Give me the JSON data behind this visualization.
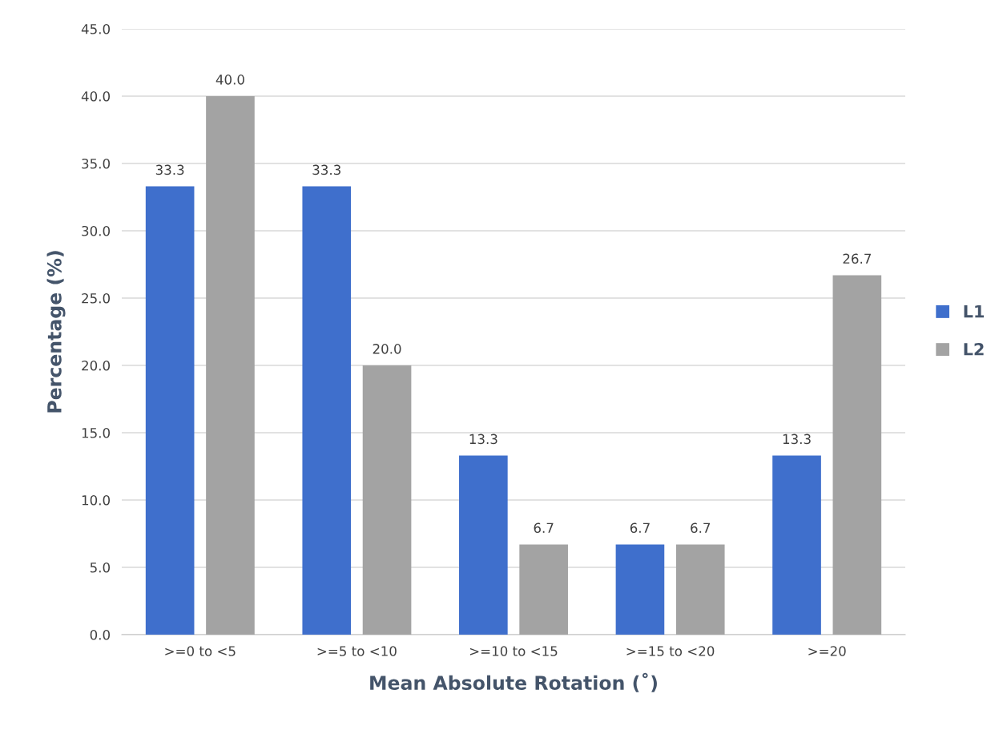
{
  "chart_data": {
    "type": "bar",
    "xlabel": "Mean Absolute Rotation (˚)",
    "ylabel": "Percentage (%)",
    "categories": [
      ">=0 to <5",
      ">=5 to <10",
      ">=10 to <15",
      ">=15 to <20",
      ">=20"
    ],
    "series": [
      {
        "name": "L1",
        "color": "#3f6fcc",
        "values": [
          33.3,
          33.3,
          13.3,
          6.7,
          13.3
        ],
        "value_labels": [
          "33.3",
          "33.3",
          "13.3",
          "6.7",
          "13.3"
        ]
      },
      {
        "name": "L2",
        "color": "#a3a3a3",
        "values": [
          40.0,
          20.0,
          6.7,
          6.7,
          26.7
        ],
        "value_labels": [
          "40.0",
          "20.0",
          "6.7",
          "6.7",
          "26.7"
        ]
      }
    ],
    "ylim": [
      0,
      45
    ],
    "yticks": [
      {
        "value": 0,
        "label": "0.0"
      },
      {
        "value": 5,
        "label": "5.0"
      },
      {
        "value": 10,
        "label": "10.0"
      },
      {
        "value": 15,
        "label": "15.0"
      },
      {
        "value": 20,
        "label": "20.0"
      },
      {
        "value": 25,
        "label": "25.0"
      },
      {
        "value": 30,
        "label": "30.0"
      },
      {
        "value": 35,
        "label": "35.0"
      },
      {
        "value": 40,
        "label": "40.0"
      },
      {
        "value": 45,
        "label": "45.0"
      }
    ],
    "grid": "y",
    "legend": "right"
  }
}
